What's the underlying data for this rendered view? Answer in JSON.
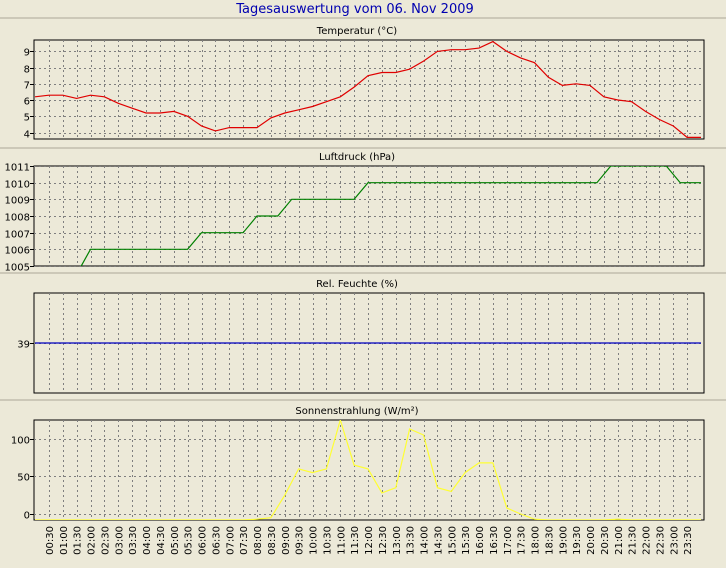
{
  "title": "Tagesauswertung vom 06. Nov 2009",
  "time_labels": [
    "00:30",
    "01:00",
    "01:30",
    "02:00",
    "02:30",
    "03:00",
    "03:30",
    "04:00",
    "04:30",
    "05:00",
    "05:30",
    "06:00",
    "06:30",
    "07:00",
    "07:30",
    "08:00",
    "08:30",
    "09:00",
    "09:30",
    "10:00",
    "10:30",
    "11:00",
    "11:30",
    "12:00",
    "12:30",
    "13:00",
    "13:30",
    "14:00",
    "14:30",
    "15:00",
    "15:30",
    "16:00",
    "16:30",
    "17:00",
    "17:30",
    "18:00",
    "18:30",
    "19:00",
    "19:30",
    "20:00",
    "20:30",
    "21:00",
    "21:30",
    "22:00",
    "22:30",
    "23:00",
    "23:30"
  ],
  "colors": {
    "background": "#ece9d8",
    "plot_background": "#ece9d8",
    "grid": "#7f7f7f",
    "title": "#0000b0",
    "temperature": "#e00000",
    "pressure": "#008000",
    "humidity": "#0000c0",
    "solar": "#ffff33"
  },
  "chart_data": [
    {
      "id": "temperature",
      "type": "line",
      "title": "Temperatur (°C)",
      "ylim": [
        3.6,
        9.7
      ],
      "yticks": [
        4,
        5,
        6,
        7,
        8,
        9
      ],
      "grid": true,
      "x": [
        0.0,
        0.5,
        1.0,
        1.5,
        2.0,
        2.5,
        3.0,
        3.5,
        4.0,
        4.5,
        5.0,
        5.5,
        6.0,
        6.5,
        7.0,
        7.5,
        8.0,
        8.5,
        9.0,
        9.5,
        10.0,
        10.5,
        11.0,
        11.5,
        12.0,
        12.5,
        13.0,
        13.5,
        14.0,
        14.5,
        15.0,
        15.5,
        16.0,
        16.5,
        17.0,
        17.5,
        18.0,
        18.5,
        19.0,
        19.5,
        20.0,
        20.5,
        21.0,
        21.5,
        22.0,
        22.5,
        23.0,
        23.5,
        24.0
      ],
      "series": [
        {
          "values": [
            6.2,
            6.3,
            6.3,
            6.1,
            6.3,
            6.2,
            5.8,
            5.5,
            5.2,
            5.2,
            5.3,
            5.0,
            4.4,
            4.1,
            4.3,
            4.3,
            4.3,
            4.9,
            5.2,
            5.4,
            5.6,
            5.9,
            6.2,
            6.8,
            7.5,
            7.7,
            7.7,
            7.9,
            8.4,
            9.0,
            9.1,
            9.1,
            9.2,
            9.6,
            9.0,
            8.6,
            8.3,
            7.4,
            6.9,
            7.0,
            6.9,
            6.2,
            6.0,
            5.9,
            5.3,
            4.8,
            4.4,
            3.7,
            3.7
          ]
        }
      ]
    },
    {
      "id": "pressure",
      "type": "line",
      "title": "Luftdruck (hPa)",
      "ylim": [
        1005,
        1011
      ],
      "yticks": [
        1005,
        1006,
        1007,
        1008,
        1009,
        1010,
        1011
      ],
      "grid": true,
      "x": [
        0,
        1.5,
        2,
        5.5,
        6,
        7.5,
        8,
        8.75,
        9.25,
        11.5,
        12,
        20.25,
        20.75,
        22.75,
        23.25,
        24
      ],
      "series": [
        {
          "values": [
            1004.5,
            1004.5,
            1006,
            1006,
            1007,
            1007,
            1008,
            1008,
            1009,
            1009,
            1010,
            1010,
            1011,
            1011,
            1010,
            1010
          ]
        }
      ]
    },
    {
      "id": "humidity",
      "type": "line",
      "title": "Rel. Feuchte (%)",
      "ylim": [
        38,
        40
      ],
      "yticks": [
        39
      ],
      "grid": true,
      "x": [
        0,
        24
      ],
      "series": [
        {
          "values": [
            39,
            39
          ]
        }
      ]
    },
    {
      "id": "solar",
      "type": "line",
      "title": "Sonnenstrahlung (W/m²)",
      "ylim": [
        -8,
        125
      ],
      "yticks": [
        0,
        50,
        100
      ],
      "grid": true,
      "x": [
        0,
        2,
        3,
        7,
        7.5,
        8,
        8.5,
        9,
        9.5,
        10,
        10.5,
        11,
        11.5,
        12,
        12.5,
        13,
        13.5,
        14,
        14.5,
        15,
        15.5,
        16,
        16.5,
        17,
        17.5,
        18,
        18.5,
        20.5,
        21,
        21.5,
        24
      ],
      "series": [
        {
          "values": [
            -8,
            -8,
            -8,
            -8,
            -8,
            -7,
            -5,
            25,
            60,
            55,
            60,
            125,
            65,
            60,
            28,
            35,
            113,
            105,
            35,
            30,
            55,
            68,
            68,
            8,
            0,
            -7,
            -8,
            -8,
            -7,
            -8,
            -8
          ]
        }
      ]
    }
  ]
}
